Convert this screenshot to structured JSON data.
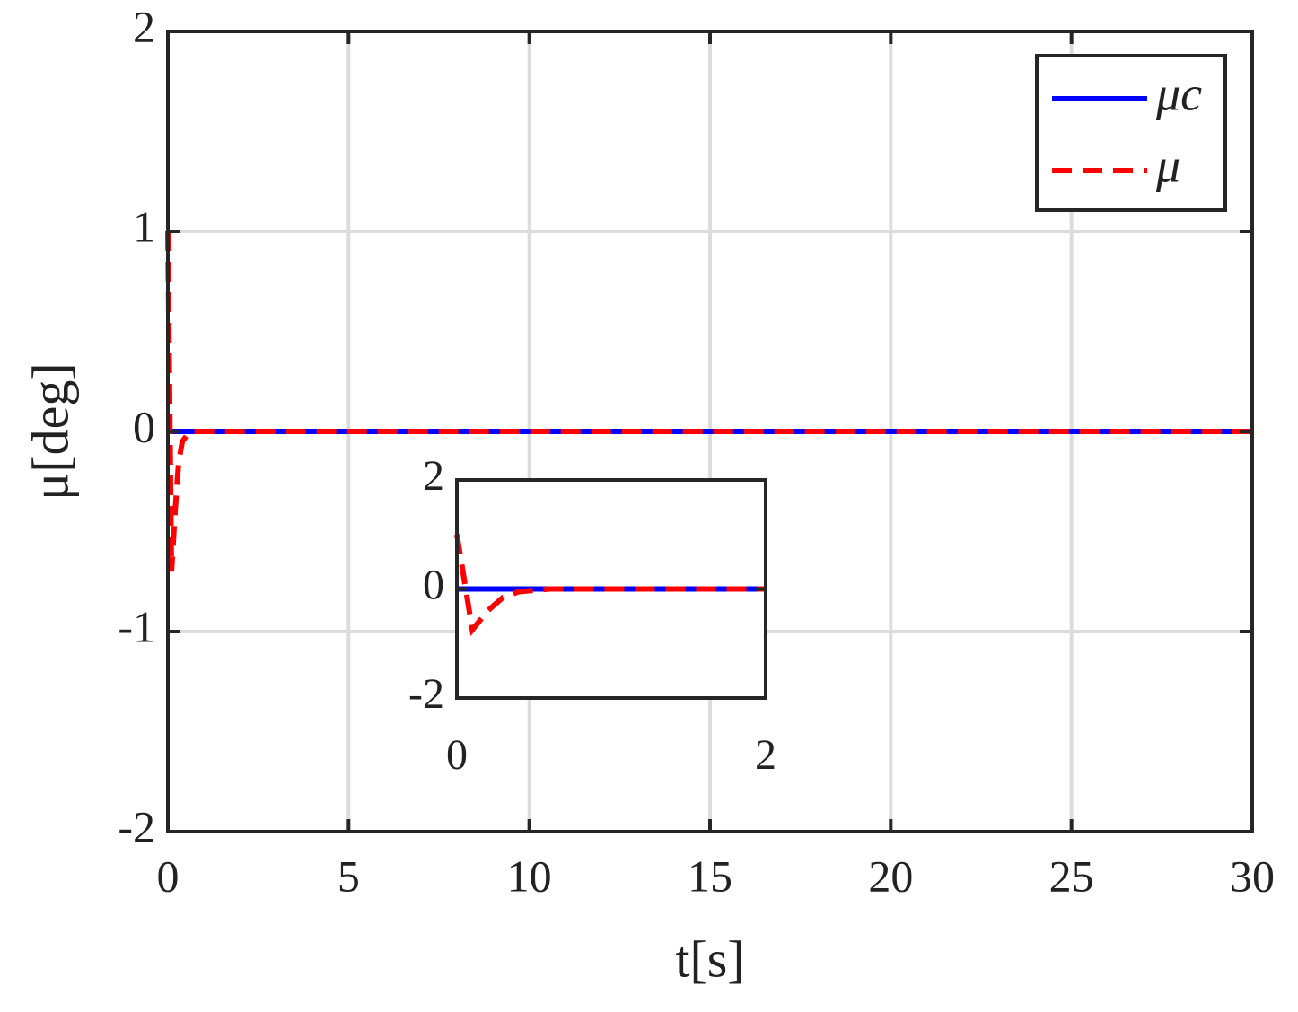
{
  "chart_data": [
    {
      "type": "line",
      "x_label": "t[s]",
      "y_label": "μ[deg]",
      "x": [
        0,
        0.1,
        0.2,
        0.3,
        0.4,
        0.6,
        1,
        30
      ],
      "series": [
        {
          "name": "μc",
          "color": "#0000ff",
          "linestyle": "solid",
          "values": [
            0,
            0,
            0,
            0,
            0,
            0,
            0,
            0
          ]
        },
        {
          "name": "μ",
          "color": "#ff0000",
          "linestyle": "dashed",
          "values": [
            1,
            -0.7,
            -0.4,
            -0.15,
            -0.05,
            0,
            0,
            0
          ]
        }
      ],
      "xlim": [
        0,
        30
      ],
      "ylim": [
        -2,
        2
      ],
      "xticks": [
        0,
        5,
        10,
        15,
        20,
        25,
        30
      ],
      "yticks": [
        -2,
        -1,
        0,
        1,
        2
      ],
      "grid": true,
      "legend": "upper right"
    },
    {
      "type": "line",
      "x": [
        0,
        0.1,
        0.2,
        0.3,
        0.4,
        0.6,
        1,
        2
      ],
      "series": [
        {
          "color": "#0000ff",
          "linestyle": "solid",
          "values": [
            0,
            0,
            0,
            0,
            0,
            0,
            0,
            0
          ]
        },
        {
          "color": "#ff0000",
          "linestyle": "dashed",
          "values": [
            1,
            -0.75,
            -0.4,
            -0.15,
            -0.05,
            0,
            0,
            0
          ]
        }
      ],
      "xlim": [
        0,
        2
      ],
      "ylim": [
        -2,
        2
      ],
      "xticks": [
        0,
        2
      ],
      "yticks": [
        -2,
        0,
        2
      ],
      "grid": true
    }
  ]
}
